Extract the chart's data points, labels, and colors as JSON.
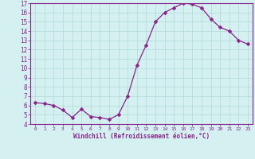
{
  "x": [
    0,
    1,
    2,
    3,
    4,
    5,
    6,
    7,
    8,
    9,
    10,
    11,
    12,
    13,
    14,
    15,
    16,
    17,
    18,
    19,
    20,
    21,
    22,
    23
  ],
  "y": [
    6.3,
    6.2,
    6.0,
    5.5,
    4.7,
    5.6,
    4.8,
    4.7,
    4.5,
    5.0,
    7.0,
    10.3,
    12.5,
    15.0,
    16.0,
    16.5,
    17.0,
    16.9,
    16.5,
    15.3,
    14.4,
    14.0,
    13.0,
    12.6
  ],
  "line_color": "#882288",
  "marker": "D",
  "marker_size": 2.5,
  "bg_color": "#d4f0f0",
  "grid_color": "#b0d8d8",
  "xlabel": "Windchill (Refroidissement éolien,°C)",
  "ylim": [
    4,
    17
  ],
  "xlim": [
    -0.5,
    23.5
  ],
  "yticks": [
    4,
    5,
    6,
    7,
    8,
    9,
    10,
    11,
    12,
    13,
    14,
    15,
    16,
    17
  ],
  "xticks": [
    0,
    1,
    2,
    3,
    4,
    5,
    6,
    7,
    8,
    9,
    10,
    11,
    12,
    13,
    14,
    15,
    16,
    17,
    18,
    19,
    20,
    21,
    22,
    23
  ],
  "tick_color": "#882288",
  "label_color": "#882288"
}
